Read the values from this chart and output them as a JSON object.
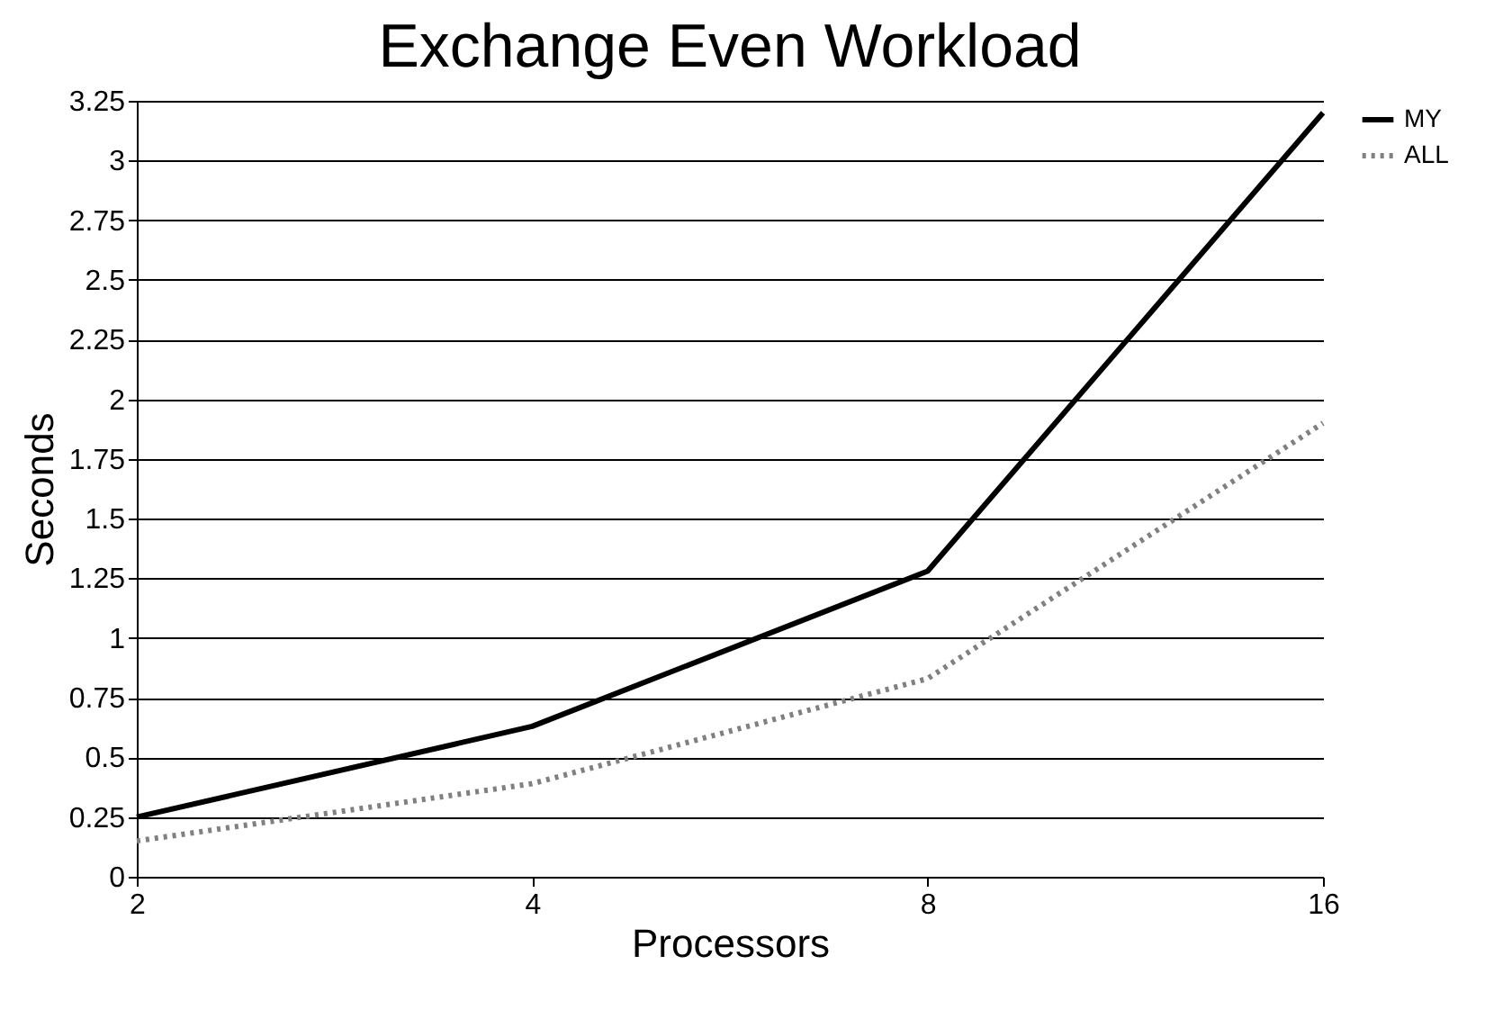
{
  "chart_data": {
    "type": "line",
    "title": "Exchange Even Workload",
    "xlabel": "Processors",
    "ylabel": "Seconds",
    "categories": [
      "2",
      "4",
      "8",
      "16"
    ],
    "series": [
      {
        "name": "MY",
        "color": "#000000",
        "line_style": "solid",
        "values": [
          0.25,
          0.63,
          1.28,
          3.2
        ]
      },
      {
        "name": "ALL",
        "color": "#808080",
        "line_style": "dotted",
        "values": [
          0.15,
          0.39,
          0.83,
          1.9
        ]
      }
    ],
    "ylim": [
      0,
      3.25
    ],
    "yticks": [
      0,
      0.25,
      0.5,
      0.75,
      1,
      1.25,
      1.5,
      1.75,
      2,
      2.25,
      2.5,
      2.75,
      3,
      3.25
    ],
    "grid": "y",
    "legend": "right",
    "marker": "none"
  }
}
